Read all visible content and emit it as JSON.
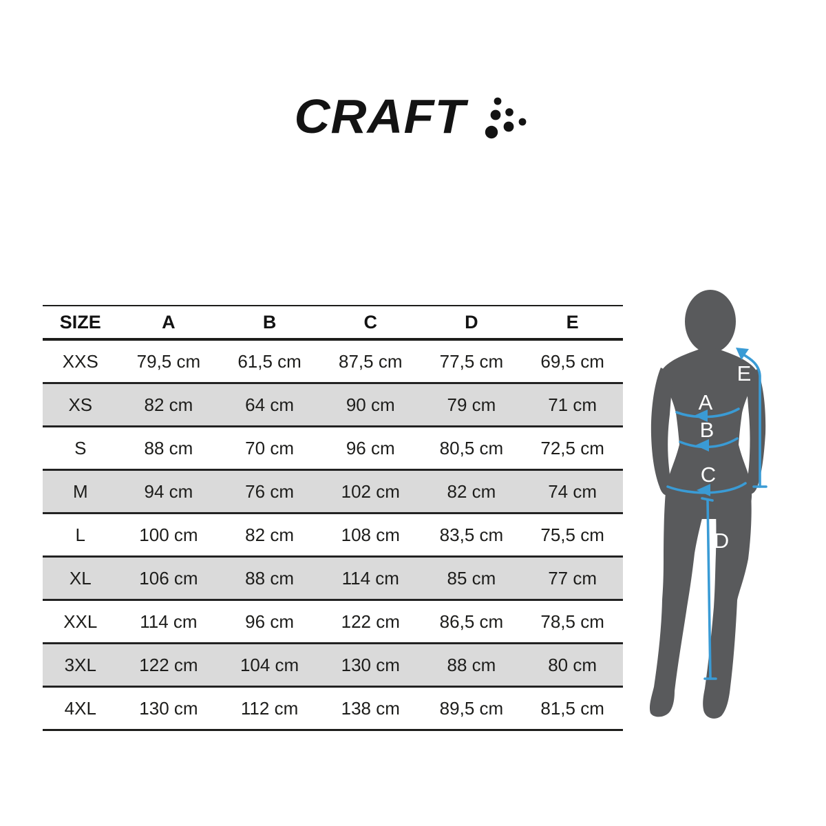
{
  "logo": {
    "brand": "CRAFT",
    "dots_icon": "craft-dot-cluster-icon"
  },
  "size_chart": {
    "headers": [
      "SIZE",
      "A",
      "B",
      "C",
      "D",
      "E"
    ],
    "rows": [
      {
        "size": "XXS",
        "values": [
          "79,5 cm",
          "61,5 cm",
          "87,5 cm",
          "77,5 cm",
          "69,5 cm"
        ],
        "shaded": false
      },
      {
        "size": "XS",
        "values": [
          "82 cm",
          "64 cm",
          "90 cm",
          "79 cm",
          "71 cm"
        ],
        "shaded": true
      },
      {
        "size": "S",
        "values": [
          "88 cm",
          "70 cm",
          "96 cm",
          "80,5 cm",
          "72,5 cm"
        ],
        "shaded": false
      },
      {
        "size": "M",
        "values": [
          "94 cm",
          "76 cm",
          "102 cm",
          "82 cm",
          "74 cm"
        ],
        "shaded": true
      },
      {
        "size": "L",
        "values": [
          "100 cm",
          "82 cm",
          "108 cm",
          "83,5 cm",
          "75,5 cm"
        ],
        "shaded": false
      },
      {
        "size": "XL",
        "values": [
          "106 cm",
          "88 cm",
          "114 cm",
          "85 cm",
          "77 cm"
        ],
        "shaded": true
      },
      {
        "size": "XXL",
        "values": [
          "114 cm",
          "96 cm",
          "122 cm",
          "86,5 cm",
          "78,5 cm"
        ],
        "shaded": false
      },
      {
        "size": "3XL",
        "values": [
          "122 cm",
          "104 cm",
          "130 cm",
          "88 cm",
          "80 cm"
        ],
        "shaded": true
      },
      {
        "size": "4XL",
        "values": [
          "130 cm",
          "112 cm",
          "138 cm",
          "89,5 cm",
          "81,5 cm"
        ],
        "shaded": false
      }
    ]
  },
  "figure": {
    "silhouette_icon": "female-body-back-silhouette-icon",
    "labels": {
      "bust": "A",
      "waist": "B",
      "hip": "C",
      "inseam": "D",
      "sleeve": "E"
    }
  },
  "colors": {
    "accent_blue": "#3A9BD5",
    "silhouette_gray": "#595A5C",
    "row_shaded_gray": "#DADADA",
    "text_black": "#1D1D1B"
  }
}
